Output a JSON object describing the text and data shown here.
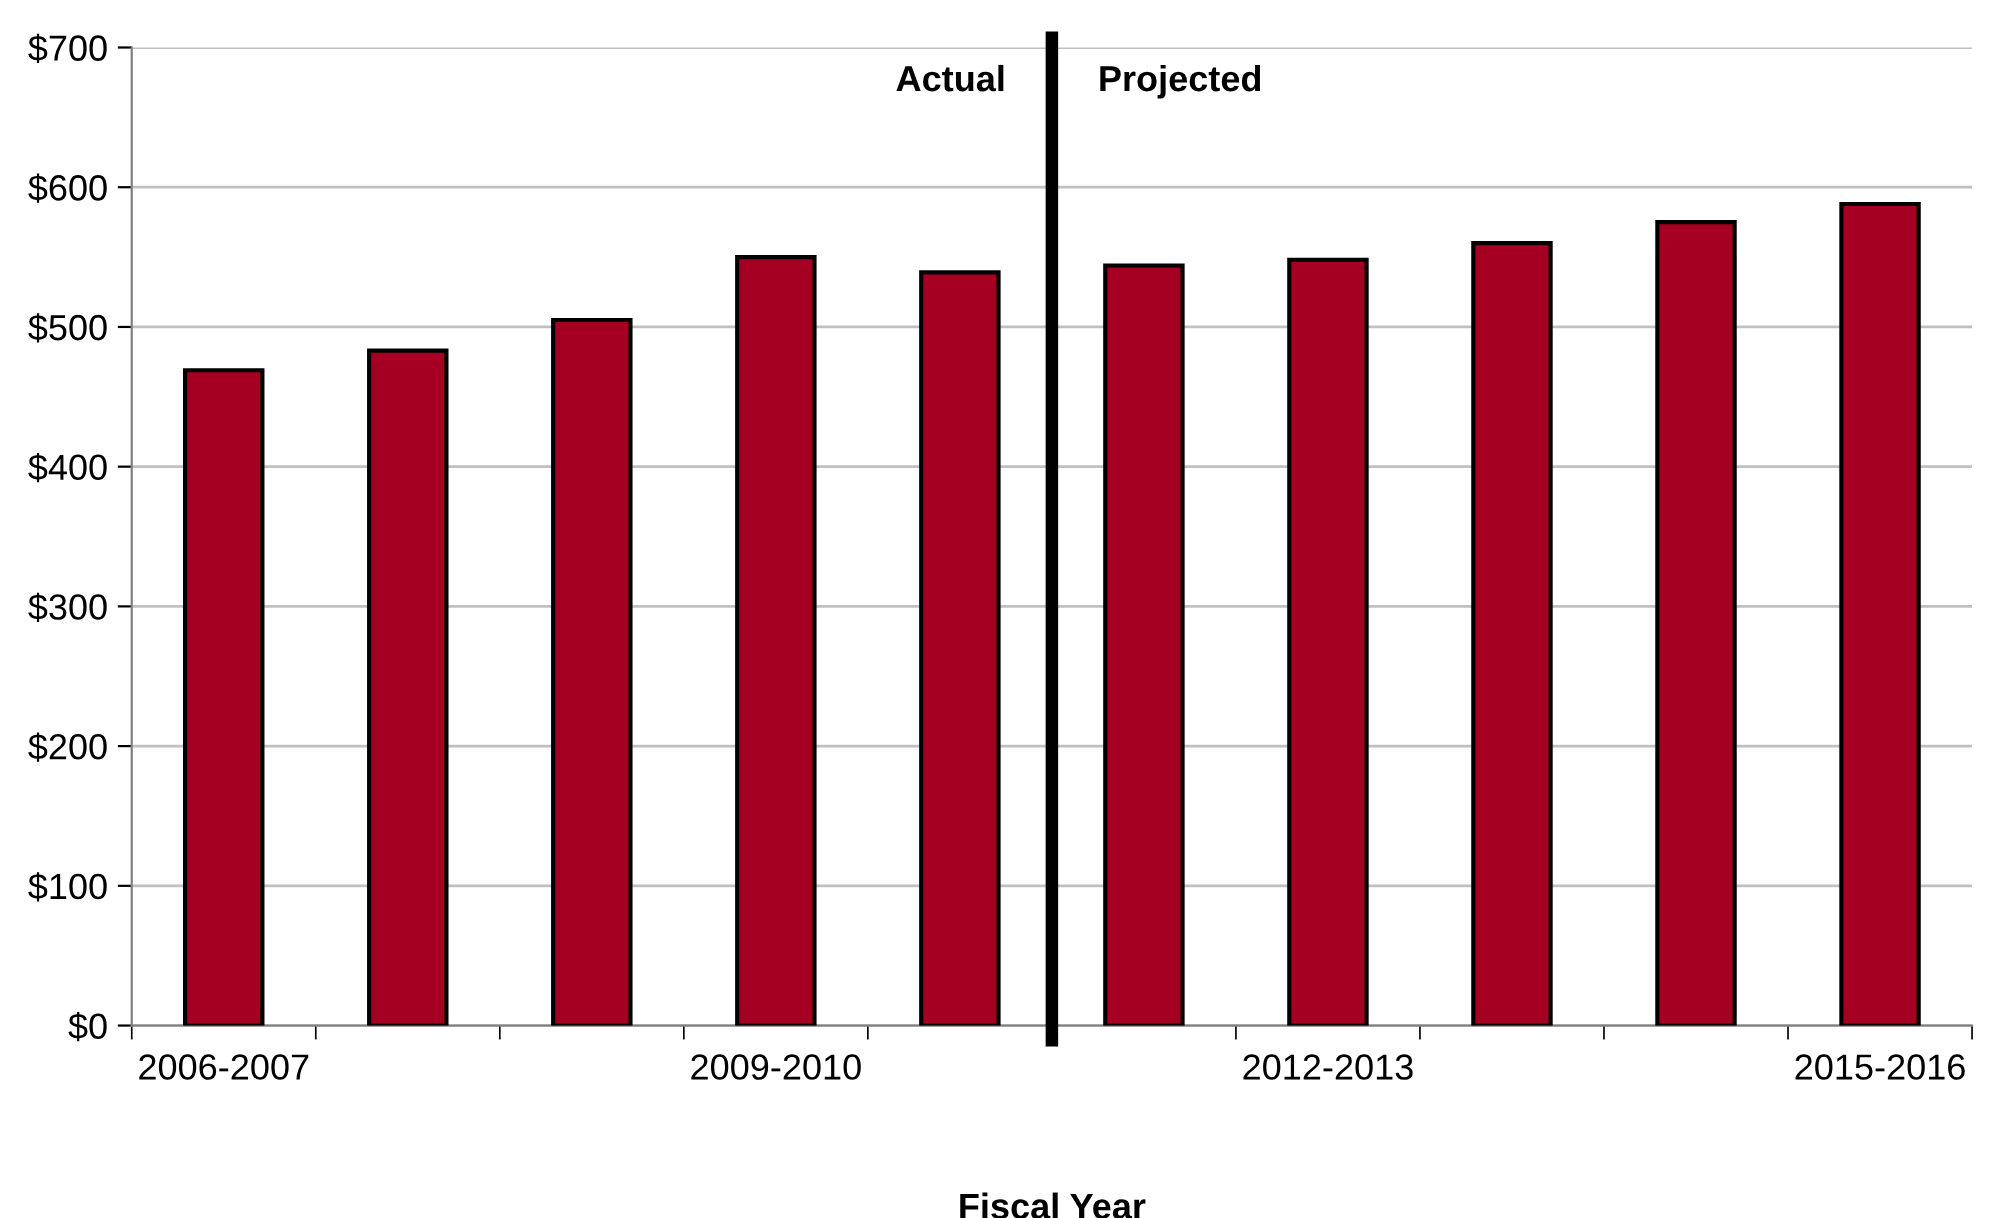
{
  "chart_data": {
    "type": "bar",
    "xlabel": "Fiscal Year",
    "categories": [
      "2006-2007",
      null,
      null,
      "2009-2010",
      null,
      null,
      "2012-2013",
      null,
      null,
      "2015-2016"
    ],
    "values": [
      469,
      483,
      505,
      550,
      539,
      544,
      548,
      560,
      575,
      588
    ],
    "color": "#a50021",
    "ylim": [
      0,
      700
    ],
    "yticks": [
      {
        "value": 0,
        "label": "$0"
      },
      {
        "value": 100,
        "label": "$100"
      },
      {
        "value": 200,
        "label": "$200"
      },
      {
        "value": 300,
        "label": "$300"
      },
      {
        "value": 400,
        "label": "$400"
      },
      {
        "value": 500,
        "label": "$500"
      },
      {
        "value": 600,
        "label": "$600"
      },
      {
        "value": 700,
        "label": "$700"
      }
    ],
    "grid": "y",
    "legend": false,
    "annotations": [
      "Actual",
      "Projected"
    ]
  }
}
